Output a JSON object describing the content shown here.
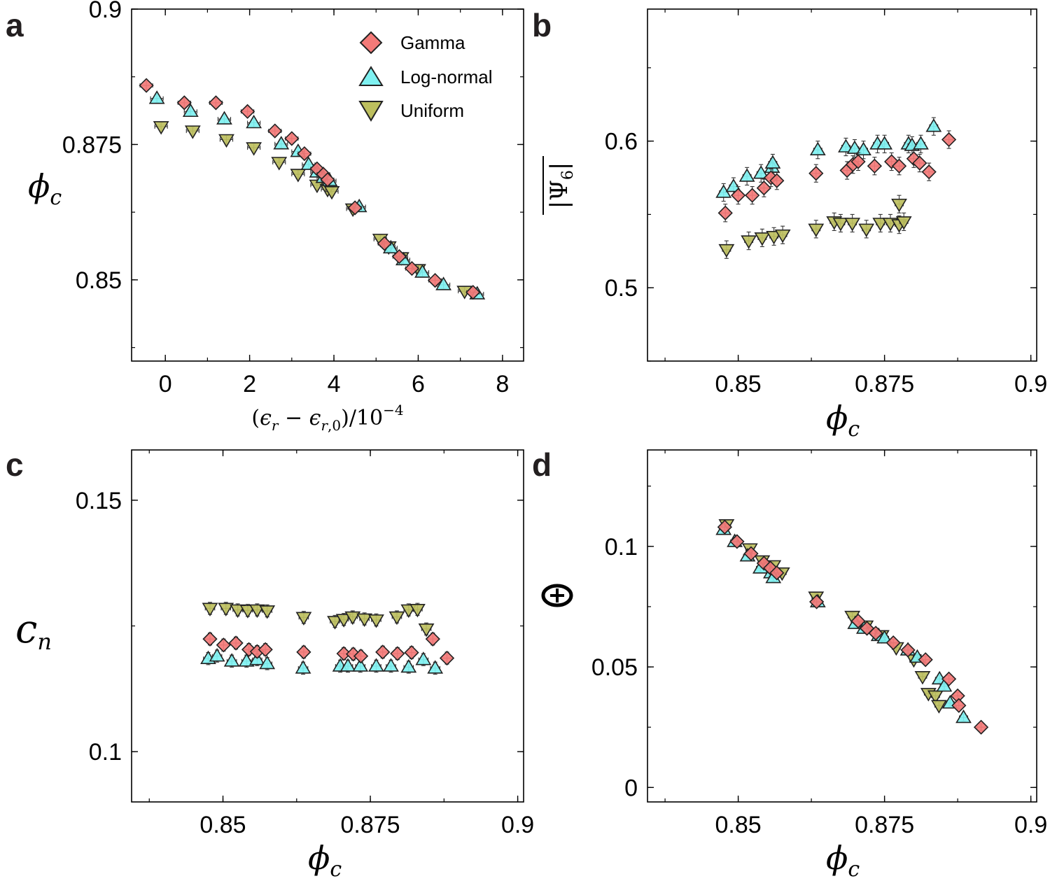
{
  "colors": {
    "Gamma": "#f47a78",
    "Log-normal": "#7ff1f1",
    "Uniform": "#bdbf5e",
    "errorbar": "#333333",
    "axis": "#000000"
  },
  "legend": [
    {
      "label": "Gamma",
      "marker": "diamond"
    },
    {
      "label": "Log-normal",
      "marker": "triangle-up"
    },
    {
      "label": "Uniform",
      "marker": "triangle-down"
    }
  ],
  "chart_data": [
    {
      "panel": "a",
      "type": "scatter",
      "xlabel": "(ε_r − ε_r,0)/10^−4",
      "ylabel": "φ_c",
      "xlim": [
        -0.8,
        8.5
      ],
      "ylim": [
        0.835,
        0.9
      ],
      "xticks": [
        0,
        2,
        4,
        6,
        8
      ],
      "xtick_labels": [
        "0",
        "2",
        "4",
        "6",
        "8"
      ],
      "yticks": [
        0.85,
        0.875,
        0.9
      ],
      "ytick_labels": [
        "0.85",
        "0.875",
        "0.9"
      ],
      "legend_position": "top-right",
      "series": [
        {
          "name": "Gamma",
          "x": [
            -0.45,
            0.45,
            1.2,
            1.95,
            2.6,
            3.0,
            3.3,
            3.6,
            3.75,
            3.85,
            4.5,
            5.2,
            5.55,
            5.85,
            6.4,
            7.3
          ],
          "y": [
            0.8859,
            0.8827,
            0.8827,
            0.8811,
            0.8775,
            0.8761,
            0.8733,
            0.8705,
            0.8695,
            0.8685,
            0.8633,
            0.8567,
            0.8543,
            0.8521,
            0.8499,
            0.8477
          ],
          "xerr": 0.15,
          "yerr": 0.0008
        },
        {
          "name": "Log-normal",
          "x": [
            -0.2,
            0.6,
            1.4,
            2.1,
            2.75,
            3.15,
            3.4,
            3.6,
            3.75,
            3.9,
            4.6,
            5.35,
            5.65,
            6.1,
            6.6,
            7.4
          ],
          "y": [
            0.8835,
            0.8811,
            0.8797,
            0.879,
            0.8751,
            0.8737,
            0.8713,
            0.8699,
            0.8689,
            0.8683,
            0.8635,
            0.8559,
            0.8537,
            0.8514,
            0.8491,
            0.8474
          ],
          "xerr": 0.15,
          "yerr": 0.0008
        },
        {
          "name": "Uniform",
          "x": [
            -0.1,
            0.65,
            1.45,
            2.1,
            2.7,
            3.15,
            3.6,
            3.85,
            3.95,
            4.45,
            5.1,
            5.3,
            5.6,
            6.0,
            7.1
          ],
          "y": [
            0.8783,
            0.8775,
            0.8759,
            0.8744,
            0.8717,
            0.8695,
            0.8675,
            0.8667,
            0.8663,
            0.8631,
            0.8575,
            0.8561,
            0.8541,
            0.8519,
            0.8479
          ],
          "xerr": 0.15,
          "yerr": 0.0008
        }
      ]
    },
    {
      "panel": "b",
      "type": "scatter",
      "xlabel": "φ_c",
      "ylabel": "|Ψ6| (mean)",
      "xlim": [
        0.8345,
        0.901
      ],
      "ylim": [
        0.45,
        0.69
      ],
      "xticks": [
        0.85,
        0.875,
        0.9
      ],
      "xtick_labels": [
        "0.85",
        "0.875",
        "0.9"
      ],
      "yticks": [
        0.5,
        0.6
      ],
      "ytick_labels": [
        "0.5",
        "0.6"
      ],
      "series": [
        {
          "name": "Gamma",
          "x": [
            0.8478,
            0.85,
            0.8524,
            0.8544,
            0.8556,
            0.8566,
            0.8633,
            0.8686,
            0.8696,
            0.8705,
            0.8733,
            0.8762,
            0.8775,
            0.88,
            0.881,
            0.8826,
            0.886
          ],
          "y": [
            0.551,
            0.563,
            0.563,
            0.568,
            0.575,
            0.573,
            0.578,
            0.58,
            0.584,
            0.586,
            0.583,
            0.586,
            0.583,
            0.588,
            0.585,
            0.579,
            0.601
          ],
          "xerr": 0.0007,
          "yerr": 0.006
        },
        {
          "name": "Log-normal",
          "x": [
            0.8475,
            0.8492,
            0.8515,
            0.8539,
            0.8558,
            0.8559,
            0.8636,
            0.8684,
            0.8699,
            0.8714,
            0.8738,
            0.875,
            0.8791,
            0.8797,
            0.8812,
            0.8834
          ],
          "y": [
            0.565,
            0.569,
            0.576,
            0.578,
            0.582,
            0.585,
            0.594,
            0.596,
            0.595,
            0.594,
            0.598,
            0.598,
            0.598,
            0.597,
            0.598,
            0.61
          ],
          "xerr": 0.0007,
          "yerr": 0.006
        },
        {
          "name": "Uniform",
          "x": [
            0.848,
            0.8518,
            0.8541,
            0.8561,
            0.8576,
            0.8633,
            0.8664,
            0.8675,
            0.8695,
            0.8719,
            0.8743,
            0.876,
            0.8775,
            0.8783
          ],
          "y": [
            0.526,
            0.532,
            0.534,
            0.535,
            0.536,
            0.54,
            0.545,
            0.544,
            0.544,
            0.54,
            0.544,
            0.544,
            0.543,
            0.545
          ],
          "xerr": 0.0007,
          "yerr": 0.006
        },
        {
          "name": "Uniform (extra)",
          "x": [
            0.8775
          ],
          "y": [
            0.557
          ],
          "xerr": 0.0007,
          "yerr": 0.006,
          "style": "Uniform"
        }
      ]
    },
    {
      "panel": "c",
      "type": "scatter",
      "xlabel": "φ_c",
      "ylabel": "c_n",
      "xlim": [
        0.8345,
        0.901
      ],
      "ylim": [
        0.09,
        0.16
      ],
      "xticks": [
        0.85,
        0.875,
        0.9
      ],
      "xtick_labels": [
        "0.85",
        "0.875",
        "0.9"
      ],
      "yticks": [
        0.1,
        0.15
      ],
      "ytick_labels": [
        "0.1",
        "0.15"
      ],
      "series": [
        {
          "name": "Gamma",
          "x": [
            0.8478,
            0.8501,
            0.8522,
            0.8544,
            0.8558,
            0.8572,
            0.8637,
            0.8705,
            0.8721,
            0.8734,
            0.8771,
            0.8796,
            0.882,
            0.8856,
            0.888
          ],
          "y": [
            0.1224,
            0.1212,
            0.1216,
            0.1203,
            0.1199,
            0.1203,
            0.1198,
            0.1195,
            0.1194,
            0.119,
            0.1198,
            0.1195,
            0.1197,
            0.1224,
            0.1186
          ],
          "xerr": 0.0008,
          "yerr": 0.0012
        },
        {
          "name": "Log-normal",
          "x": [
            0.8475,
            0.849,
            0.8515,
            0.854,
            0.8558,
            0.8575,
            0.8636,
            0.8699,
            0.8712,
            0.8733,
            0.876,
            0.8785,
            0.8815,
            0.884,
            0.886
          ],
          "y": [
            0.1185,
            0.119,
            0.118,
            0.118,
            0.1183,
            0.1175,
            0.1166,
            0.117,
            0.117,
            0.117,
            0.117,
            0.117,
            0.1168,
            0.1183,
            0.1166
          ],
          "xerr": 0.0008,
          "yerr": 0.0012
        },
        {
          "name": "Uniform",
          "x": [
            0.8478,
            0.8505,
            0.8525,
            0.8542,
            0.8558,
            0.8575,
            0.8637,
            0.869,
            0.8705,
            0.872,
            0.874,
            0.876,
            0.8795,
            0.8815,
            0.883,
            0.8845
          ],
          "y": [
            0.1285,
            0.1285,
            0.1282,
            0.1281,
            0.1282,
            0.128,
            0.1267,
            0.1259,
            0.1263,
            0.1268,
            0.1264,
            0.1262,
            0.1268,
            0.1282,
            0.1283,
            0.1244
          ],
          "xerr": 0.0008,
          "yerr": 0.0012
        }
      ]
    },
    {
      "panel": "d",
      "type": "scatter",
      "xlabel": "φ_c",
      "ylabel": "Θ",
      "xlim": [
        0.8345,
        0.901
      ],
      "ylim": [
        -0.006,
        0.14
      ],
      "xticks": [
        0.85,
        0.875,
        0.9
      ],
      "xtick_labels": [
        "0.85",
        "0.875",
        "0.9"
      ],
      "yticks": [
        0,
        0.05,
        0.1
      ],
      "ytick_labels": [
        "0",
        "0.05",
        "0.1"
      ],
      "series": [
        {
          "name": "Gamma",
          "x": [
            0.8477,
            0.8498,
            0.8522,
            0.8544,
            0.8555,
            0.8566,
            0.8634,
            0.8705,
            0.872,
            0.8735,
            0.8765,
            0.879,
            0.882,
            0.886,
            0.8875,
            0.8877,
            0.8915
          ],
          "y": [
            0.108,
            0.102,
            0.097,
            0.093,
            0.091,
            0.089,
            0.077,
            0.069,
            0.066,
            0.064,
            0.06,
            0.057,
            0.053,
            0.045,
            0.038,
            0.034,
            0.025
          ],
          "xerr": 0.0007,
          "yerr": 0.0015
        },
        {
          "name": "Log-normal",
          "x": [
            0.8475,
            0.8494,
            0.8516,
            0.8538,
            0.8556,
            0.856,
            0.8636,
            0.87,
            0.8715,
            0.874,
            0.875,
            0.879,
            0.8806,
            0.8844,
            0.8852,
            0.8862,
            0.8885
          ],
          "y": [
            0.107,
            0.102,
            0.096,
            0.091,
            0.089,
            0.087,
            0.077,
            0.068,
            0.066,
            0.063,
            0.062,
            0.057,
            0.054,
            0.045,
            0.042,
            0.035,
            0.029
          ],
          "xerr": 0.0007,
          "yerr": 0.0015
        },
        {
          "name": "Uniform",
          "x": [
            0.848,
            0.852,
            0.8541,
            0.856,
            0.8575,
            0.8633,
            0.8695,
            0.8718,
            0.8745,
            0.877,
            0.88,
            0.8815,
            0.8825,
            0.8837,
            0.8843
          ],
          "y": [
            0.109,
            0.099,
            0.094,
            0.092,
            0.089,
            0.079,
            0.071,
            0.067,
            0.063,
            0.058,
            0.053,
            0.046,
            0.039,
            0.038,
            0.034
          ],
          "xerr": 0.0007,
          "yerr": 0.0015
        }
      ]
    }
  ],
  "panel_labels": [
    "a",
    "b",
    "c",
    "d"
  ]
}
